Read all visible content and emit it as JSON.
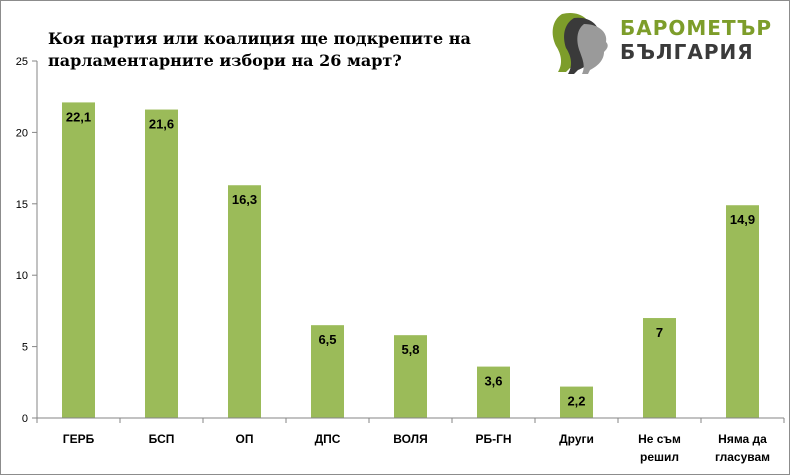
{
  "chart_data": {
    "type": "bar",
    "title_lines": [
      "Коя партия или коалиция ще подкрепите на",
      "парламентарните избори на 26 март?"
    ],
    "categories": [
      [
        "ГЕРБ"
      ],
      [
        "БСП"
      ],
      [
        "ОП"
      ],
      [
        "ДПС"
      ],
      [
        "ВОЛЯ"
      ],
      [
        "РБ-ГН"
      ],
      [
        "Други"
      ],
      [
        "Не съм",
        "решил"
      ],
      [
        "Няма да",
        "гласувам"
      ]
    ],
    "values": [
      22.1,
      21.6,
      16.3,
      6.5,
      5.8,
      3.6,
      2.2,
      7,
      14.9
    ],
    "data_labels": [
      "22,1",
      "21,6",
      "16,3",
      "6,5",
      "5,8",
      "3,6",
      "2,2",
      "7",
      "14,9"
    ],
    "ylim": [
      0,
      25
    ],
    "yticks": [
      0,
      5,
      10,
      15,
      20,
      25
    ],
    "bar_color": "#9bbb59",
    "grid": false,
    "legend": "none"
  },
  "logo": {
    "line1": "БАРОМЕТЪР",
    "line2": "БЪЛГАРИЯ",
    "accent": "#7d9d2a",
    "dark": "#3a3a3a"
  }
}
